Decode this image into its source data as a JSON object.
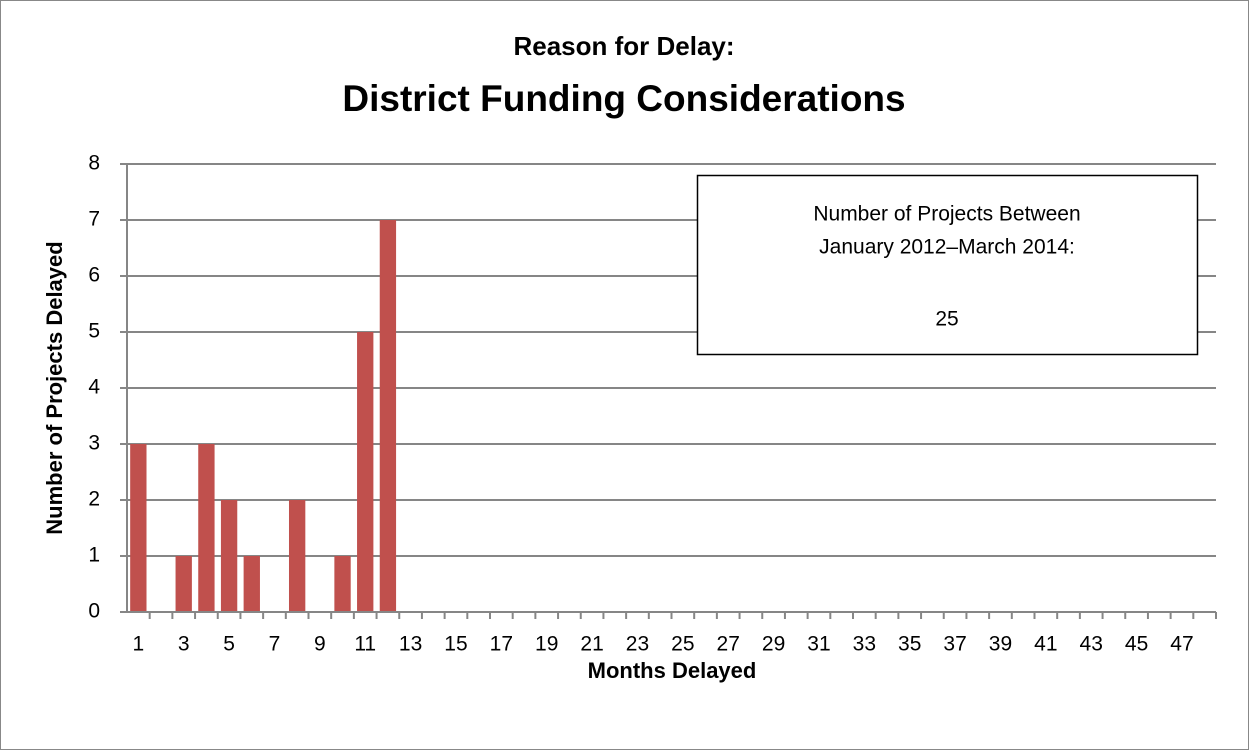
{
  "chart_data": {
    "type": "bar",
    "title": "Reason for Delay:",
    "subtitle": "District Funding Considerations",
    "x_label": "Months Delayed",
    "y_label": "Number of Projects Delayed",
    "categories": [
      "1",
      null,
      "3",
      null,
      "5",
      null,
      "7",
      null,
      "9",
      null,
      "11",
      null,
      "13",
      null,
      "15",
      null,
      "17",
      null,
      "19",
      null,
      "21",
      null,
      "23",
      null,
      "25",
      null,
      "27",
      null,
      "29",
      null,
      "31",
      null,
      "33",
      null,
      "35",
      null,
      "37",
      null,
      "39",
      null,
      "41",
      null,
      "43",
      null,
      "45",
      null,
      "47",
      null
    ],
    "values": [
      3,
      0,
      1,
      3,
      2,
      1,
      0,
      2,
      0,
      1,
      5,
      7,
      0,
      0,
      0,
      0,
      0,
      0,
      0,
      0,
      0,
      0,
      0,
      0,
      0,
      0,
      0,
      0,
      0,
      0,
      0,
      0,
      0,
      0,
      0,
      0,
      0,
      0,
      0,
      0,
      0,
      0,
      0,
      0,
      0,
      0,
      0,
      0
    ],
    "color": "#c0504d",
    "ylim": [
      0,
      8
    ],
    "yticks": [
      0,
      1,
      2,
      3,
      4,
      5,
      6,
      7,
      8
    ],
    "grid": true,
    "annotation": [
      "Number of Projects Between",
      "January 2012–March 2014:",
      "25"
    ]
  }
}
